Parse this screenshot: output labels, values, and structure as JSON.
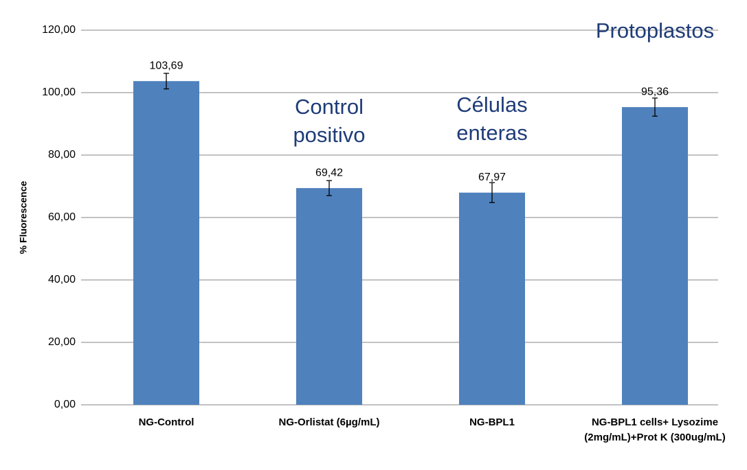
{
  "chart_data": {
    "type": "bar",
    "y_label": "% Fluorescence",
    "categories": [
      "NG-Control",
      "NG-Orlistat (6µg/mL)",
      "NG-BPL1",
      "NG-BPL1 cells+ Lysozime (2mg/mL)+Prot K (300ug/mL)"
    ],
    "values": [
      103.69,
      69.42,
      67.97,
      95.36
    ],
    "value_labels": [
      "103,69",
      "69,42",
      "67,97",
      "95,36"
    ],
    "errors": [
      2.5,
      2.4,
      3.2,
      2.9
    ],
    "color": "#4f81bd",
    "ylim": [
      0,
      120
    ],
    "yticks": [
      {
        "value": 0,
        "label": "0,00"
      },
      {
        "value": 20,
        "label": "20,00"
      },
      {
        "value": 40,
        "label": "40,00"
      },
      {
        "value": 60,
        "label": "60,00"
      },
      {
        "value": 80,
        "label": "80,00"
      },
      {
        "value": 100,
        "label": "100,00"
      },
      {
        "value": 120,
        "label": "120,00"
      }
    ],
    "grid": true,
    "annotations": [
      {
        "lines": [
          "Control",
          "positivo"
        ]
      },
      {
        "lines": [
          "Células",
          "enteras"
        ]
      },
      {
        "lines": [
          "Protoplastos"
        ]
      }
    ]
  }
}
